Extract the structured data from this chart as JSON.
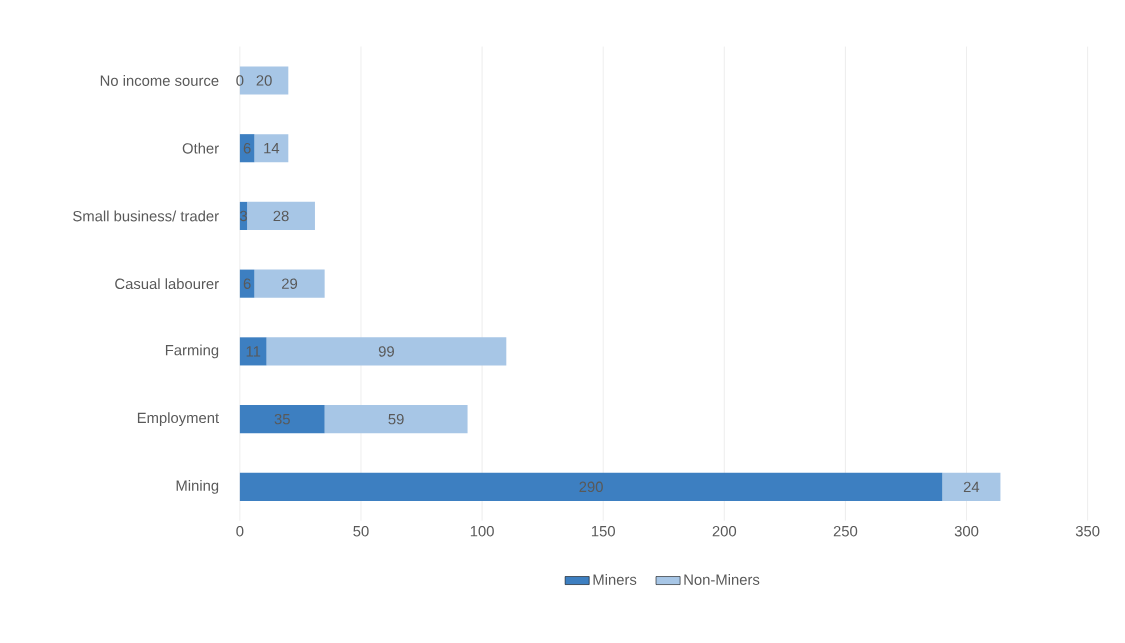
{
  "chart_data": {
    "type": "bar",
    "orientation": "horizontal",
    "stacked": true,
    "categories": [
      "No income source",
      "Other",
      "Small business/ trader",
      "Casual labourer",
      "Farming",
      "Employment",
      "Mining"
    ],
    "series": [
      {
        "name": "Miners",
        "color": "#3d7fc1",
        "values": [
          0,
          6,
          3,
          6,
          11,
          35,
          290
        ]
      },
      {
        "name": "Non-Miners",
        "color": "#a7c6e6",
        "values": [
          20,
          14,
          28,
          29,
          99,
          59,
          24
        ]
      }
    ],
    "xlim": [
      0,
      350
    ],
    "xticks": [
      0,
      50,
      100,
      150,
      200,
      250,
      300,
      350
    ],
    "grid": "x",
    "legend": "bottom",
    "data_labels": true
  }
}
